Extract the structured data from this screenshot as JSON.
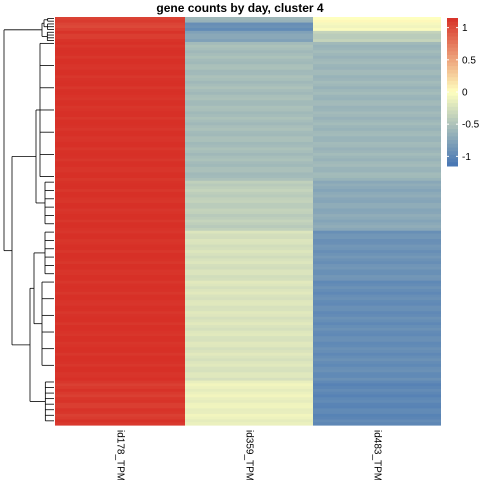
{
  "chart_data": {
    "type": "heatmap",
    "title": "gene counts by day, cluster 4",
    "columns": [
      "id178_TPM",
      "id359_TPM",
      "id483_TPM"
    ],
    "legend": {
      "ticks": [
        1,
        0.5,
        0,
        -0.5,
        -1
      ],
      "tick_labels": [
        "1",
        "0.5",
        "0",
        "-0.5",
        "-1"
      ],
      "colors": {
        "low": "#4575b4",
        "mid": "#ffffbf",
        "high": "#d73027"
      },
      "range": [
        -1.15,
        1.15
      ],
      "placement": "right"
    },
    "dendrogram": "rows",
    "row_groups": [
      {
        "rows": 2,
        "values": [
          1.05,
          -0.6,
          0.0
        ]
      },
      {
        "rows": 3,
        "values": [
          1.05,
          -0.95,
          -0.05
        ]
      },
      {
        "rows": 4,
        "values": [
          1.1,
          -0.75,
          -0.4
        ]
      },
      {
        "rows": 50,
        "values": [
          1.15,
          -0.55,
          -0.6
        ]
      },
      {
        "rows": 18,
        "values": [
          1.15,
          -0.4,
          -0.72
        ]
      },
      {
        "rows": 18,
        "values": [
          1.15,
          -0.25,
          -0.9
        ]
      },
      {
        "rows": 36,
        "values": [
          1.15,
          -0.22,
          -0.95
        ]
      },
      {
        "rows": 16,
        "values": [
          1.1,
          -0.12,
          -1.0
        ]
      }
    ]
  }
}
